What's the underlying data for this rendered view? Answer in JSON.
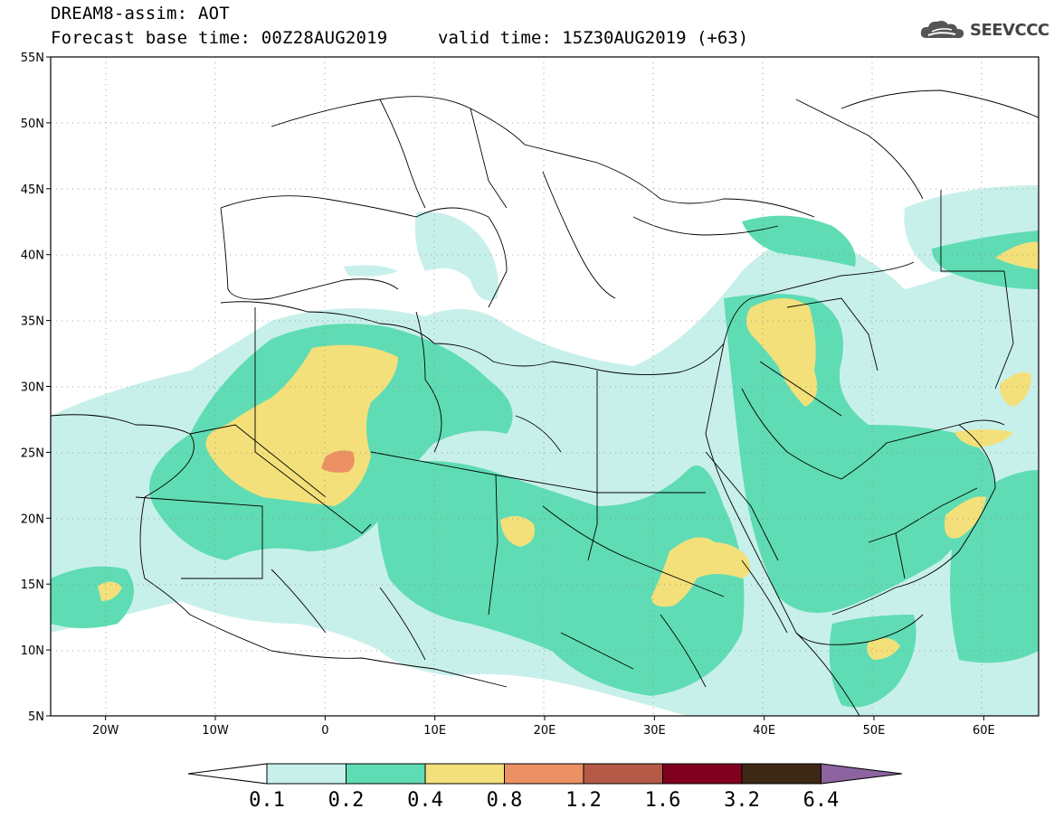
{
  "title": {
    "line1": "DREAM8-assim: AOT",
    "line2": "Forecast base time: 00Z28AUG2019",
    "valid": "valid time: 15Z30AUG2019 (+63)"
  },
  "logo": {
    "text": "SEEVCCC",
    "icon": "cloud-icon"
  },
  "map": {
    "projection": "lat-lon",
    "lon_range": [
      -25,
      65
    ],
    "lat_range": [
      5,
      55
    ],
    "lat_ticks": [
      "55N",
      "50N",
      "45N",
      "40N",
      "35N",
      "30N",
      "25N",
      "20N",
      "15N",
      "10N",
      "5N"
    ],
    "lon_ticks": [
      "20W",
      "10W",
      "0",
      "10E",
      "20E",
      "30E",
      "40E",
      "50E",
      "60E"
    ],
    "grid": "dotted"
  },
  "colorbar": {
    "levels": [
      "0.1",
      "0.2",
      "0.4",
      "0.8",
      "1.2",
      "1.6",
      "3.2",
      "6.4"
    ],
    "colors": [
      "#c8f0ea",
      "#5fdcb4",
      "#f3e07a",
      "#eb9164",
      "#b45a46",
      "#800020",
      "#3c2814",
      "#8c64a0"
    ],
    "under_color": "#ffffff"
  },
  "colors": {
    "land": "#ffffff",
    "border": "#000000",
    "aot_01_02": "#c8f0ea",
    "aot_02_04": "#5fdcb4",
    "aot_04_08": "#f3e07a",
    "aot_08_12": "#eb9164"
  }
}
